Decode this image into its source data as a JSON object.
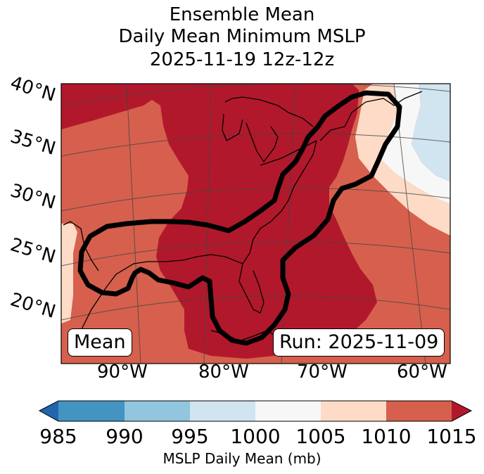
{
  "title": {
    "line1": "Ensemble Mean",
    "line2": "Daily Mean Minimum MSLP",
    "line3": "2025-11-19 12z-12z"
  },
  "lat_labels": [
    "40°N",
    "35°N",
    "30°N",
    "25°N",
    "20°N"
  ],
  "lon_labels": [
    "90°W",
    "80°W",
    "70°W",
    "60°W"
  ],
  "mean_label": "Mean",
  "run_label": "Run: 2025-11-09",
  "colorbar": {
    "ticks": [
      "985",
      "990",
      "995",
      "1000",
      "1005",
      "1010",
      "1015"
    ],
    "label": "MSLP Daily Mean (mb)",
    "bins": [
      {
        "range": "<985",
        "color": "#2166ac"
      },
      {
        "range": "985-990",
        "color": "#4393c3"
      },
      {
        "range": "990-995",
        "color": "#92c5de"
      },
      {
        "range": "995-1000",
        "color": "#d1e5f0"
      },
      {
        "range": "1000-1005",
        "color": "#f7f7f7"
      },
      {
        "range": "1005-1010",
        "color": "#fddbc7"
      },
      {
        "range": "1010-1015",
        "color": "#d6604d"
      },
      {
        "range": ">1015",
        "color": "#b2182b"
      }
    ]
  },
  "colors": {
    "high": "#b2182b",
    "mid": "#d6604d",
    "low_mid": "#fddbc7",
    "neutral": "#f7f7f7",
    "low": "#d1e5f0",
    "contour": "#000000"
  }
}
